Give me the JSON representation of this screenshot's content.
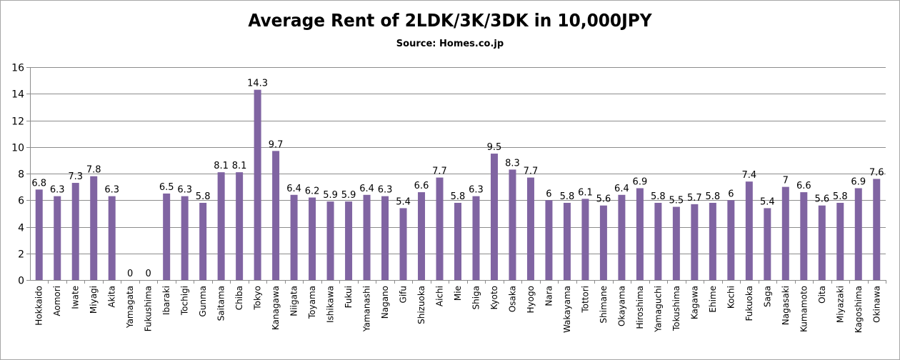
{
  "chart_data": {
    "type": "bar",
    "title": "Average Rent of 2LDK/3K/3DK in 10,000JPY",
    "subtitle": "Source: Homes.co.jp",
    "xlabel": "",
    "ylabel": "",
    "ylim": [
      0,
      16
    ],
    "yticks": [
      0,
      2,
      4,
      6,
      8,
      10,
      12,
      14,
      16
    ],
    "grid": true,
    "bar_color": "#8064a2",
    "categories": [
      "Hokkaido",
      "Aomori",
      "Iwate",
      "Miyagi",
      "Akita",
      "Yamagata",
      "Fukushima",
      "Ibaraki",
      "Tochigi",
      "Gunma",
      "Saitama",
      "Chiba",
      "Tokyo",
      "Kanagawa",
      "Niigata",
      "Toyama",
      "Ishikawa",
      "Fukui",
      "Yamanashi",
      "Nagano",
      "Gifu",
      "Shizuoka",
      "Aichi",
      "Mie",
      "Shiga",
      "Kyoto",
      "Osaka",
      "Hyogo",
      "Nara",
      "Wakayama",
      "Tottori",
      "Shimane",
      "Okayama",
      "Hiroshima",
      "Yamaguchi",
      "Tokushima",
      "Kagawa",
      "Ehime",
      "Kochi",
      "Fukuoka",
      "Saga",
      "Nagasaki",
      "Kumamoto",
      "Oita",
      "Miyazaki",
      "Kagoshima",
      "Okinawa"
    ],
    "values": [
      6.8,
      6.3,
      7.3,
      7.8,
      6.3,
      0,
      0,
      6.5,
      6.3,
      5.8,
      8.1,
      8.1,
      14.3,
      9.7,
      6.4,
      6.2,
      5.9,
      5.9,
      6.4,
      6.3,
      5.4,
      6.6,
      7.7,
      5.8,
      6.3,
      9.5,
      8.3,
      7.7,
      6,
      5.8,
      6.1,
      5.6,
      6.4,
      6.9,
      5.8,
      5.5,
      5.7,
      5.8,
      6,
      7.4,
      5.4,
      7,
      6.6,
      5.6,
      5.8,
      6.9,
      7.6
    ],
    "labels": [
      "6.8",
      "6.3",
      "7.3",
      "7.8",
      "6.3",
      "0",
      "0",
      "6.5",
      "6.3",
      "5.8",
      "8.1",
      "8.1",
      "14.3",
      "9.7",
      "6.4",
      "6.2",
      "5.9",
      "5.9",
      "6.4",
      "6.3",
      "5.4",
      "6.6",
      "7.7",
      "5.8",
      "6.3",
      "9.5",
      "8.3",
      "7.7",
      "6",
      "5.8",
      "6.1",
      "5.6",
      "6.4",
      "6.9",
      "5.8",
      "5.5",
      "5.7",
      "5.8",
      "6",
      "7.4",
      "5.4",
      "7",
      "6.6",
      "5.6",
      "5.8",
      "6.9",
      "7.6"
    ]
  }
}
